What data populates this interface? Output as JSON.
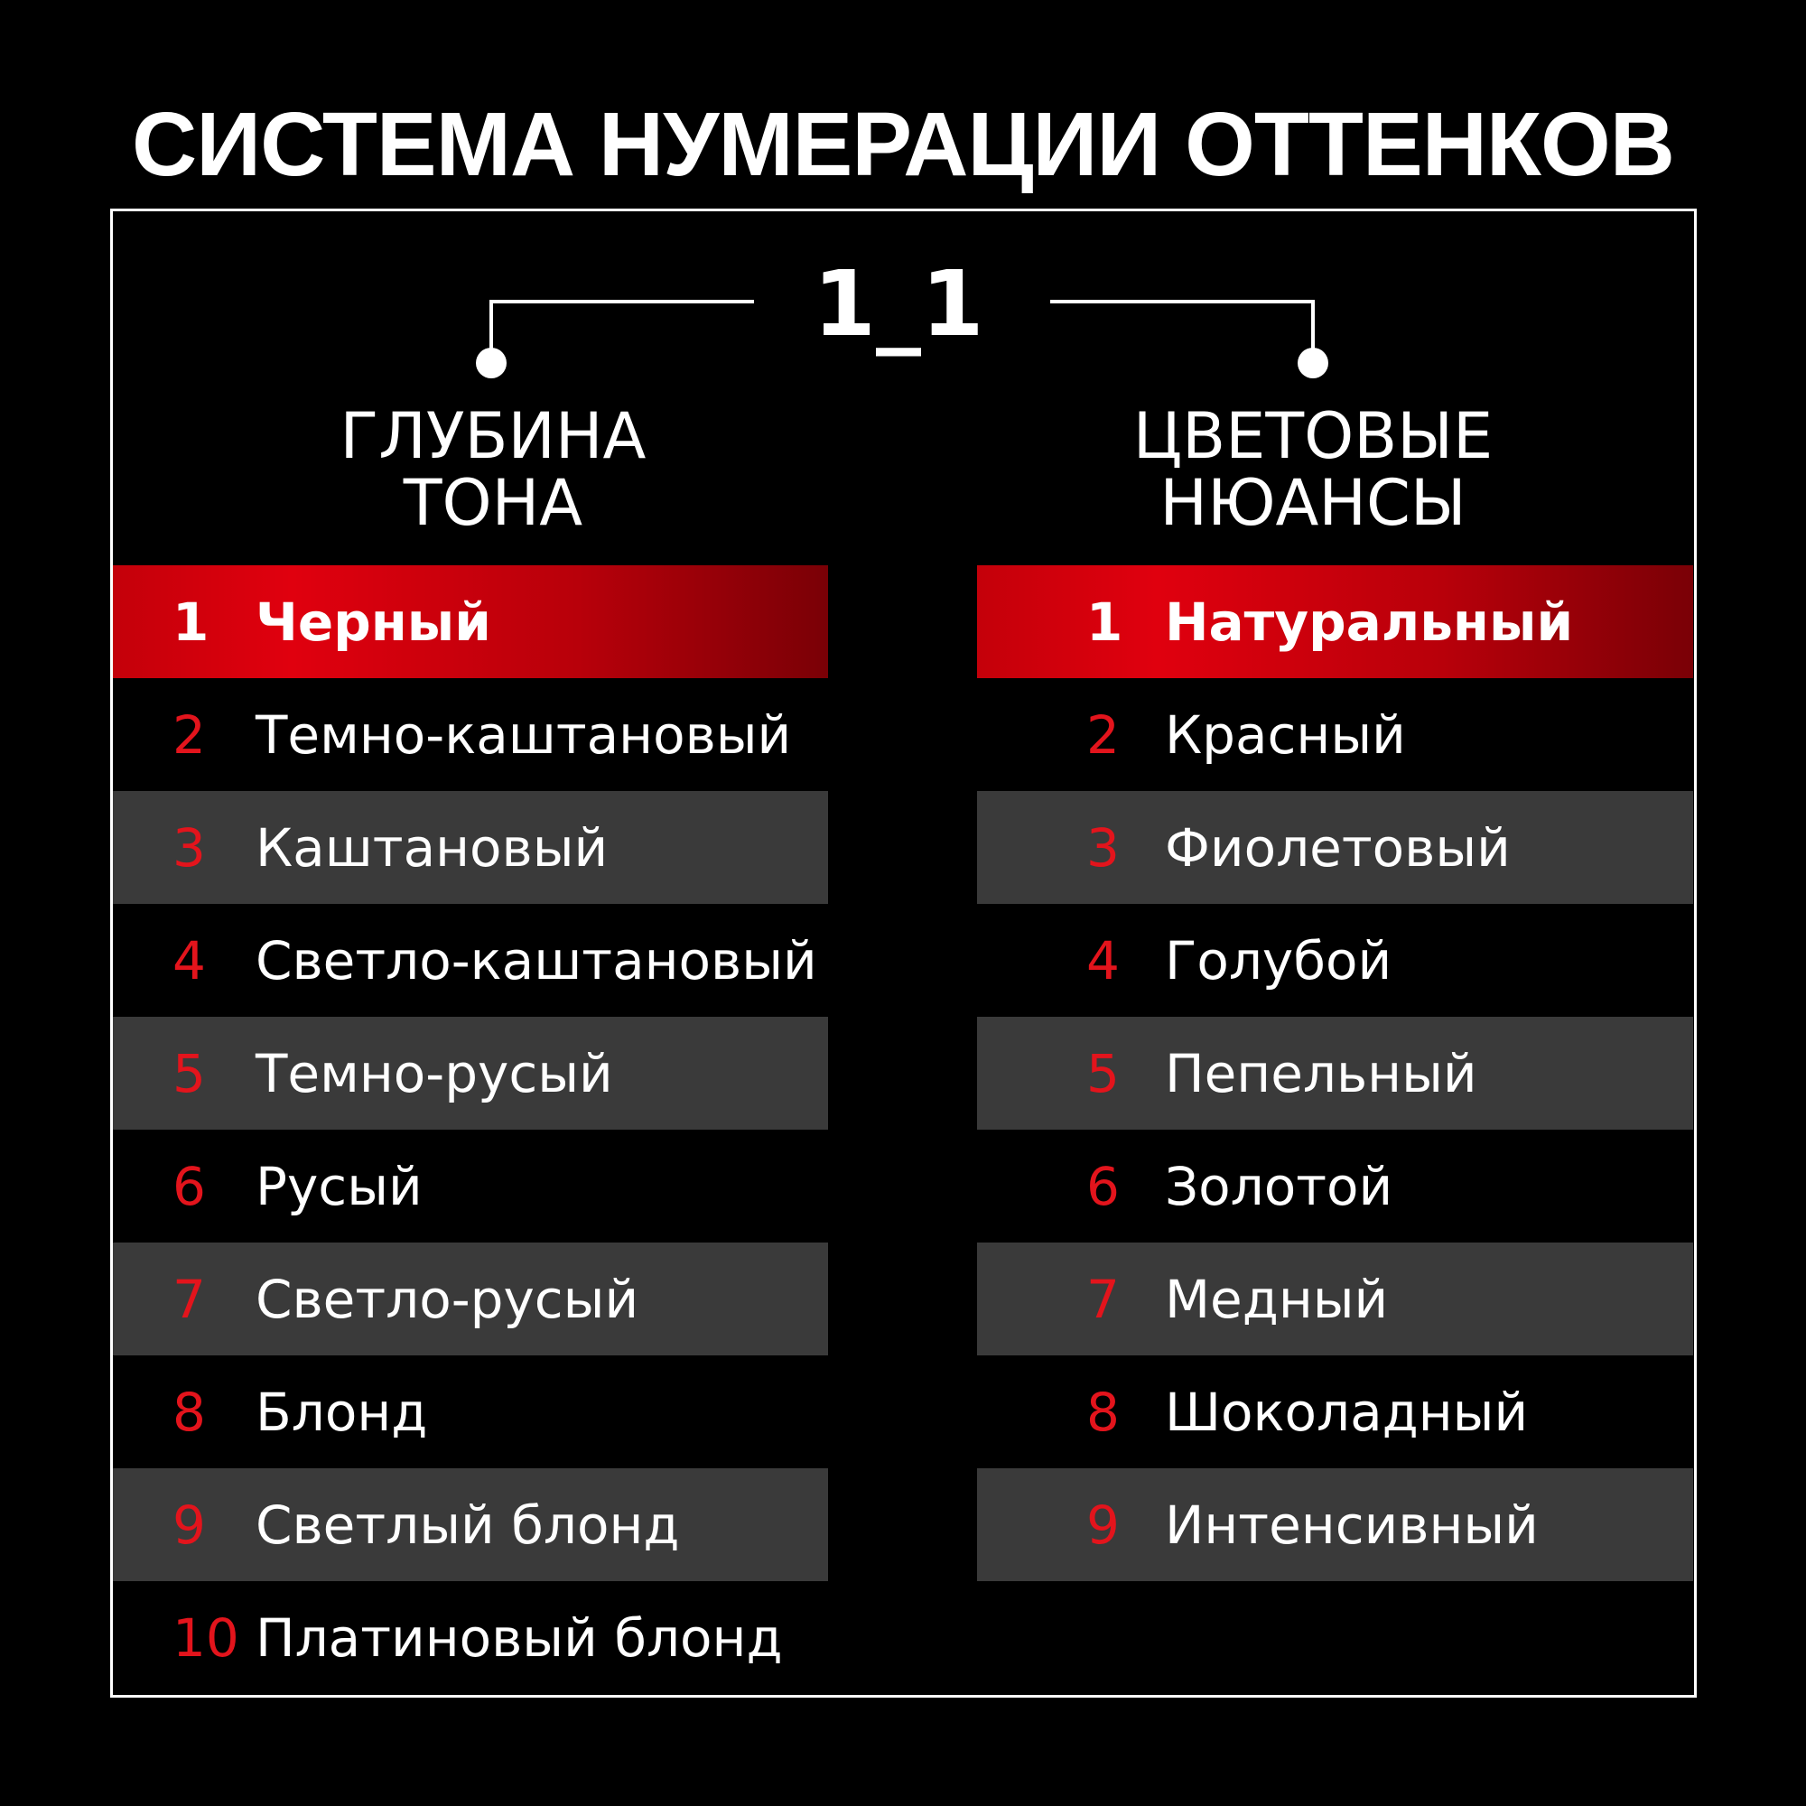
{
  "title": "СИСТЕМА НУМЕРАЦИИ ОТТЕНКОВ",
  "code": "1_1",
  "left": {
    "heading_line1": "ГЛУБИНА",
    "heading_line2": "ТОНА",
    "items": [
      {
        "n": "1",
        "label": "Черный"
      },
      {
        "n": "2",
        "label": "Темно-каштановый"
      },
      {
        "n": "3",
        "label": "Каштановый"
      },
      {
        "n": "4",
        "label": "Светло-каштановый"
      },
      {
        "n": "5",
        "label": "Темно-русый"
      },
      {
        "n": "6",
        "label": "Русый"
      },
      {
        "n": "7",
        "label": "Светло-русый"
      },
      {
        "n": "8",
        "label": "Блонд"
      },
      {
        "n": "9",
        "label": "Светлый блонд"
      },
      {
        "n": "10",
        "label": "Платиновый блонд"
      }
    ]
  },
  "right": {
    "heading_line1": "ЦВЕТОВЫЕ",
    "heading_line2": "НЮАНСЫ",
    "items": [
      {
        "n": "1",
        "label": "Натуральный"
      },
      {
        "n": "2",
        "label": "Красный"
      },
      {
        "n": "3",
        "label": "Фиолетовый"
      },
      {
        "n": "4",
        "label": "Голубой"
      },
      {
        "n": "5",
        "label": "Пепельный"
      },
      {
        "n": "6",
        "label": "Золотой"
      },
      {
        "n": "7",
        "label": "Медный"
      },
      {
        "n": "8",
        "label": "Шоколадный"
      },
      {
        "n": "9",
        "label": "Интенсивный"
      }
    ]
  },
  "colors": {
    "accent": "#e0000e",
    "row_gray": "#3a3a3a",
    "background": "#000000"
  }
}
